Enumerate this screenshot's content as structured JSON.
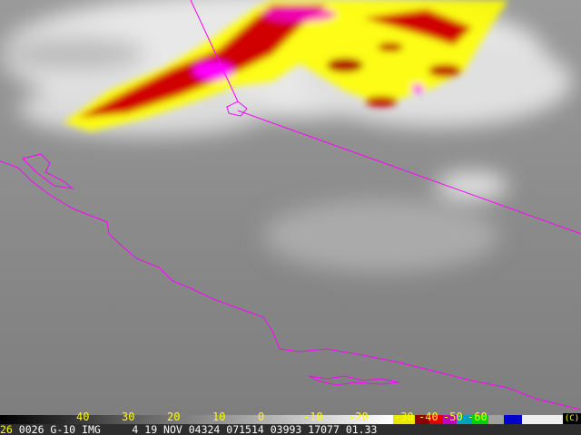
{
  "colorbar": {
    "labels": [
      "40",
      "30",
      "20",
      "10",
      "0",
      "-10",
      "-20",
      "-30",
      "-40",
      "-50",
      "-60"
    ],
    "unit_hint": "temperature scale",
    "colors": {
      "yellow": "#ffff00",
      "dark_red": "#8b0000",
      "red": "#e00000",
      "magenta": "#c000c0",
      "cyan": "#00c0c0",
      "green": "#00e000",
      "blue": "#0000d0"
    }
  },
  "status": {
    "channel": "26",
    "text": "0026 G-10 IMG     4 19 NOV 04324 071514 03993 17077 01.33"
  },
  "copyright": "(C)",
  "colors": {
    "overlay": "#ff00ff",
    "coast_outline": "#ff00ff"
  }
}
